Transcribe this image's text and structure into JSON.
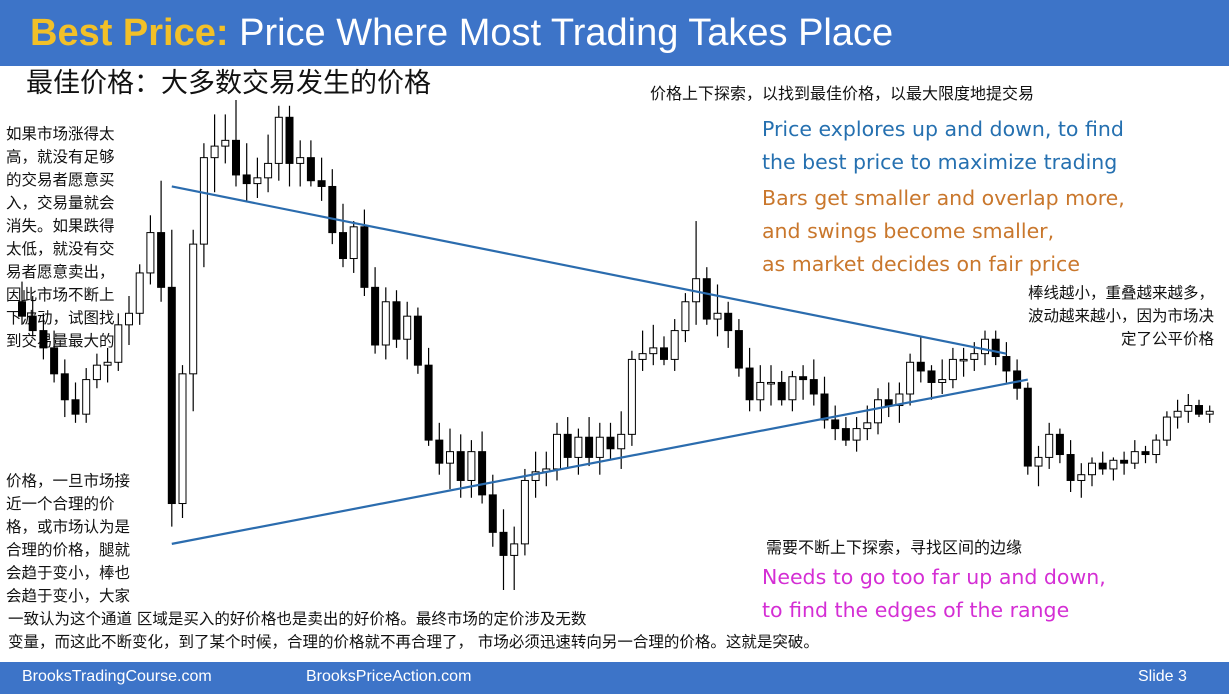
{
  "slide": {
    "title_accent": "Best Price:",
    "title_rest": " Price Where Most Trading Takes Place",
    "cn_title": "最佳价格：大多数交易发生的价格",
    "cn_top_right": "价格上下探索，以找到最佳价格，以最大限度地提交易",
    "en_blue": [
      "Price explores up and down, to find",
      "the best price to maximize trading"
    ],
    "en_orange": [
      "Bars get smaller and overlap more,",
      "and swings become smaller,",
      "as market decides on fair price"
    ],
    "cn_right_mid": [
      "棒线越小，重叠越来越多，",
      "波动越来越小，因为市场决",
      "定了公平价格"
    ],
    "cn_left_top": [
      "如果市场涨得太",
      "高，就没有足够",
      "的交易者愿意买",
      "入，交易量就会",
      "消失。如果跌得",
      "太低，就没有交",
      "易者愿意卖出，",
      "因此市场不断上",
      "下波动，试图找",
      "到交易量最大的"
    ],
    "cn_left_bottom": [
      "价格，一旦市场接",
      "近一个合理的价",
      "格，或市场认为是",
      "合理的价格，腿就",
      "会趋于变小，棒也",
      "会趋于变小，大家"
    ],
    "cn_range": "需要不断上下探索，寻找区间的边缘",
    "en_magenta": [
      "Needs to go too far up and down,",
      "to find the edges of the range"
    ],
    "cn_bottom": [
      "一致认为这个通道 区域是买入的好价格也是卖出的好价格。最终市场的定价涉及无数",
      "  变量，而这此不断变化，到了某个时候，合理的价格就不再合理了， 市场必须迅速转向另一合理的价格。这就是突破。"
    ],
    "footer_left": "BrooksTradingCourse.com",
    "footer_mid": "BrooksPriceAction.com",
    "footer_right": "Slide  3"
  },
  "colors": {
    "header_bg": "#3d74c8",
    "accent_title": "#f2c028",
    "blue_text": "#2570b0",
    "orange_text": "#c9772c",
    "magenta_text": "#d42ed4",
    "triangle_line": "#2b6cae",
    "bull_candle": "#ffffff",
    "bear_candle": "#000000"
  },
  "chart_data": {
    "type": "candlestick",
    "bars": [
      {
        "o": 420,
        "h": 427,
        "l": 412,
        "c": 415
      },
      {
        "o": 415,
        "h": 422,
        "l": 408,
        "c": 410
      },
      {
        "o": 410,
        "h": 416,
        "l": 400,
        "c": 404
      },
      {
        "o": 404,
        "h": 410,
        "l": 392,
        "c": 395
      },
      {
        "o": 395,
        "h": 400,
        "l": 380,
        "c": 386
      },
      {
        "o": 386,
        "h": 392,
        "l": 378,
        "c": 381
      },
      {
        "o": 381,
        "h": 397,
        "l": 378,
        "c": 393
      },
      {
        "o": 393,
        "h": 402,
        "l": 390,
        "c": 398
      },
      {
        "o": 398,
        "h": 404,
        "l": 392,
        "c": 399
      },
      {
        "o": 399,
        "h": 416,
        "l": 396,
        "c": 412
      },
      {
        "o": 412,
        "h": 422,
        "l": 405,
        "c": 416
      },
      {
        "o": 416,
        "h": 433,
        "l": 412,
        "c": 430
      },
      {
        "o": 430,
        "h": 450,
        "l": 426,
        "c": 444
      },
      {
        "o": 444,
        "h": 462,
        "l": 420,
        "c": 425
      },
      {
        "o": 425,
        "h": 445,
        "l": 342,
        "c": 350
      },
      {
        "o": 350,
        "h": 398,
        "l": 345,
        "c": 395
      },
      {
        "o": 395,
        "h": 445,
        "l": 382,
        "c": 440
      },
      {
        "o": 440,
        "h": 475,
        "l": 432,
        "c": 470
      },
      {
        "o": 470,
        "h": 485,
        "l": 458,
        "c": 474
      },
      {
        "o": 474,
        "h": 485,
        "l": 468,
        "c": 476
      },
      {
        "o": 476,
        "h": 490,
        "l": 460,
        "c": 464
      },
      {
        "o": 464,
        "h": 475,
        "l": 455,
        "c": 461
      },
      {
        "o": 461,
        "h": 470,
        "l": 456,
        "c": 463
      },
      {
        "o": 463,
        "h": 478,
        "l": 458,
        "c": 468
      },
      {
        "o": 468,
        "h": 488,
        "l": 462,
        "c": 484
      },
      {
        "o": 484,
        "h": 488,
        "l": 460,
        "c": 468
      },
      {
        "o": 468,
        "h": 476,
        "l": 460,
        "c": 470
      },
      {
        "o": 470,
        "h": 476,
        "l": 460,
        "c": 462
      },
      {
        "o": 462,
        "h": 470,
        "l": 455,
        "c": 460
      },
      {
        "o": 460,
        "h": 466,
        "l": 440,
        "c": 444
      },
      {
        "o": 444,
        "h": 454,
        "l": 432,
        "c": 435
      },
      {
        "o": 435,
        "h": 448,
        "l": 430,
        "c": 446
      },
      {
        "o": 446,
        "h": 452,
        "l": 422,
        "c": 425
      },
      {
        "o": 425,
        "h": 432,
        "l": 402,
        "c": 405
      },
      {
        "o": 405,
        "h": 425,
        "l": 400,
        "c": 420
      },
      {
        "o": 420,
        "h": 424,
        "l": 404,
        "c": 407
      },
      {
        "o": 407,
        "h": 420,
        "l": 400,
        "c": 415
      },
      {
        "o": 415,
        "h": 418,
        "l": 395,
        "c": 398
      },
      {
        "o": 398,
        "h": 404,
        "l": 370,
        "c": 372
      },
      {
        "o": 372,
        "h": 378,
        "l": 360,
        "c": 364
      },
      {
        "o": 364,
        "h": 376,
        "l": 355,
        "c": 368
      },
      {
        "o": 368,
        "h": 374,
        "l": 352,
        "c": 358
      },
      {
        "o": 358,
        "h": 372,
        "l": 352,
        "c": 368
      },
      {
        "o": 368,
        "h": 375,
        "l": 350,
        "c": 353
      },
      {
        "o": 353,
        "h": 360,
        "l": 335,
        "c": 340
      },
      {
        "o": 340,
        "h": 348,
        "l": 320,
        "c": 332
      },
      {
        "o": 332,
        "h": 342,
        "l": 320,
        "c": 336
      },
      {
        "o": 336,
        "h": 362,
        "l": 332,
        "c": 358
      },
      {
        "o": 358,
        "h": 368,
        "l": 352,
        "c": 361
      },
      {
        "o": 361,
        "h": 368,
        "l": 356,
        "c": 362
      },
      {
        "o": 362,
        "h": 378,
        "l": 358,
        "c": 374
      },
      {
        "o": 374,
        "h": 380,
        "l": 362,
        "c": 366
      },
      {
        "o": 366,
        "h": 376,
        "l": 360,
        "c": 373
      },
      {
        "o": 373,
        "h": 380,
        "l": 363,
        "c": 366
      },
      {
        "o": 366,
        "h": 378,
        "l": 360,
        "c": 373
      },
      {
        "o": 373,
        "h": 378,
        "l": 365,
        "c": 369
      },
      {
        "o": 369,
        "h": 382,
        "l": 362,
        "c": 374
      },
      {
        "o": 374,
        "h": 403,
        "l": 370,
        "c": 400
      },
      {
        "o": 400,
        "h": 410,
        "l": 396,
        "c": 402
      },
      {
        "o": 402,
        "h": 412,
        "l": 398,
        "c": 404
      },
      {
        "o": 404,
        "h": 408,
        "l": 398,
        "c": 400
      },
      {
        "o": 400,
        "h": 414,
        "l": 396,
        "c": 410
      },
      {
        "o": 410,
        "h": 423,
        "l": 406,
        "c": 420
      },
      {
        "o": 420,
        "h": 448,
        "l": 412,
        "c": 428
      },
      {
        "o": 428,
        "h": 432,
        "l": 412,
        "c": 414
      },
      {
        "o": 414,
        "h": 426,
        "l": 408,
        "c": 416
      },
      {
        "o": 416,
        "h": 420,
        "l": 404,
        "c": 410
      },
      {
        "o": 410,
        "h": 414,
        "l": 394,
        "c": 397
      },
      {
        "o": 397,
        "h": 404,
        "l": 382,
        "c": 386
      },
      {
        "o": 386,
        "h": 398,
        "l": 382,
        "c": 392
      },
      {
        "o": 392,
        "h": 398,
        "l": 384,
        "c": 392
      },
      {
        "o": 392,
        "h": 396,
        "l": 384,
        "c": 386
      },
      {
        "o": 386,
        "h": 396,
        "l": 382,
        "c": 394
      },
      {
        "o": 394,
        "h": 398,
        "l": 386,
        "c": 393
      },
      {
        "o": 393,
        "h": 400,
        "l": 384,
        "c": 388
      },
      {
        "o": 388,
        "h": 394,
        "l": 376,
        "c": 379
      },
      {
        "o": 379,
        "h": 384,
        "l": 372,
        "c": 376
      },
      {
        "o": 376,
        "h": 380,
        "l": 370,
        "c": 372
      },
      {
        "o": 372,
        "h": 380,
        "l": 368,
        "c": 376
      },
      {
        "o": 376,
        "h": 384,
        "l": 372,
        "c": 378
      },
      {
        "o": 378,
        "h": 390,
        "l": 374,
        "c": 386
      },
      {
        "o": 386,
        "h": 392,
        "l": 380,
        "c": 384
      },
      {
        "o": 384,
        "h": 392,
        "l": 378,
        "c": 388
      },
      {
        "o": 388,
        "h": 402,
        "l": 384,
        "c": 399
      },
      {
        "o": 399,
        "h": 408,
        "l": 392,
        "c": 396
      },
      {
        "o": 396,
        "h": 398,
        "l": 386,
        "c": 392
      },
      {
        "o": 392,
        "h": 400,
        "l": 388,
        "c": 393
      },
      {
        "o": 393,
        "h": 404,
        "l": 390,
        "c": 400
      },
      {
        "o": 400,
        "h": 404,
        "l": 394,
        "c": 400
      },
      {
        "o": 400,
        "h": 406,
        "l": 396,
        "c": 402
      },
      {
        "o": 402,
        "h": 410,
        "l": 398,
        "c": 407
      },
      {
        "o": 407,
        "h": 410,
        "l": 398,
        "c": 401
      },
      {
        "o": 401,
        "h": 406,
        "l": 392,
        "c": 396
      },
      {
        "o": 396,
        "h": 400,
        "l": 386,
        "c": 390
      },
      {
        "o": 390,
        "h": 392,
        "l": 360,
        "c": 363
      },
      {
        "o": 363,
        "h": 370,
        "l": 356,
        "c": 366
      },
      {
        "o": 366,
        "h": 378,
        "l": 362,
        "c": 374
      },
      {
        "o": 374,
        "h": 376,
        "l": 364,
        "c": 367
      },
      {
        "o": 367,
        "h": 372,
        "l": 354,
        "c": 358
      },
      {
        "o": 358,
        "h": 364,
        "l": 352,
        "c": 360
      },
      {
        "o": 360,
        "h": 366,
        "l": 356,
        "c": 364
      },
      {
        "o": 364,
        "h": 368,
        "l": 360,
        "c": 362
      },
      {
        "o": 362,
        "h": 366,
        "l": 358,
        "c": 365
      },
      {
        "o": 365,
        "h": 368,
        "l": 360,
        "c": 364
      },
      {
        "o": 364,
        "h": 372,
        "l": 362,
        "c": 368
      },
      {
        "o": 368,
        "h": 370,
        "l": 364,
        "c": 367
      },
      {
        "o": 367,
        "h": 374,
        "l": 364,
        "c": 372
      },
      {
        "o": 372,
        "h": 382,
        "l": 370,
        "c": 380
      },
      {
        "o": 380,
        "h": 386,
        "l": 376,
        "c": 382
      },
      {
        "o": 382,
        "h": 388,
        "l": 378,
        "c": 384
      },
      {
        "o": 384,
        "h": 386,
        "l": 380,
        "c": 381
      },
      {
        "o": 381,
        "h": 384,
        "l": 378,
        "c": 382
      }
    ],
    "trendline_upper": {
      "from": {
        "bar": 14,
        "price": 460
      },
      "to": {
        "bar": 92,
        "price": 402
      }
    },
    "trendline_lower": {
      "from": {
        "bar": 14,
        "price": 336
      },
      "to": {
        "bar": 94,
        "price": 393
      }
    }
  }
}
